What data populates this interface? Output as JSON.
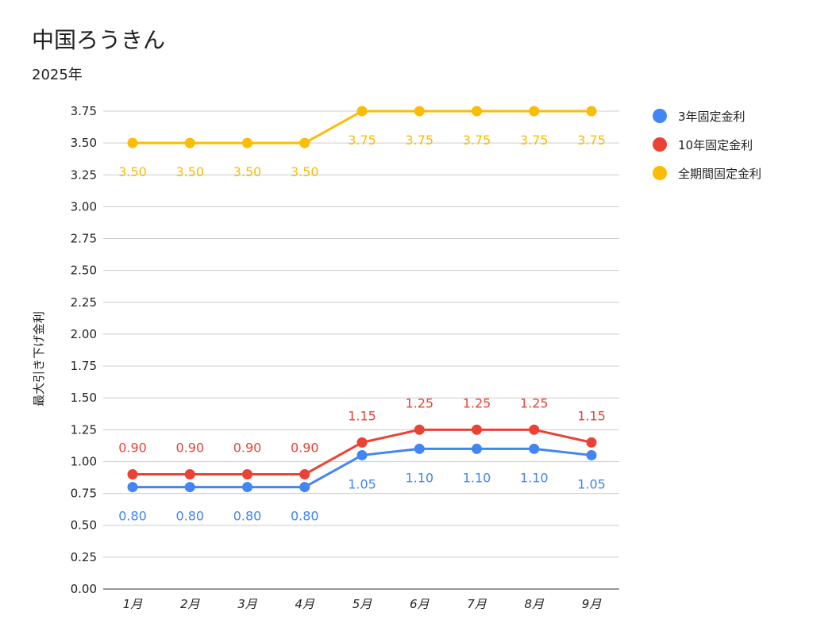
{
  "chart_data": {
    "type": "line",
    "title": "中国ろうきん",
    "subtitle": "2025年",
    "ylabel": "最大引き下げ金利",
    "xlabel": "",
    "categories": [
      "1月",
      "2月",
      "3月",
      "4月",
      "5月",
      "6月",
      "7月",
      "8月",
      "9月"
    ],
    "ylim": [
      0,
      3.75
    ],
    "yticks": [
      "0.00",
      "0.25",
      "0.50",
      "0.75",
      "1.00",
      "1.25",
      "1.50",
      "1.75",
      "2.00",
      "2.25",
      "2.50",
      "2.75",
      "3.00",
      "3.25",
      "3.50",
      "3.75"
    ],
    "grid": true,
    "legend_position": "right",
    "series": [
      {
        "name": "3年固定金利",
        "color": "#4285f4",
        "label_position": "below",
        "values": [
          0.8,
          0.8,
          0.8,
          0.8,
          1.05,
          1.1,
          1.1,
          1.1,
          1.05
        ],
        "labels": [
          "0.80",
          "0.80",
          "0.80",
          "0.80",
          "1.05",
          "1.10",
          "1.10",
          "1.10",
          "1.05"
        ]
      },
      {
        "name": "10年固定金利",
        "color": "#ea4335",
        "label_position": "above",
        "values": [
          0.9,
          0.9,
          0.9,
          0.9,
          1.15,
          1.25,
          1.25,
          1.25,
          1.15
        ],
        "labels": [
          "0.90",
          "0.90",
          "0.90",
          "0.90",
          "1.15",
          "1.25",
          "1.25",
          "1.25",
          "1.15"
        ]
      },
      {
        "name": "全期間固定金利",
        "color": "#fbbc04",
        "label_position": "below",
        "values": [
          3.5,
          3.5,
          3.5,
          3.5,
          3.75,
          3.75,
          3.75,
          3.75,
          3.75
        ],
        "labels": [
          "3.50",
          "3.50",
          "3.50",
          "3.50",
          "3.75",
          "3.75",
          "3.75",
          "3.75",
          "3.75"
        ]
      }
    ]
  }
}
